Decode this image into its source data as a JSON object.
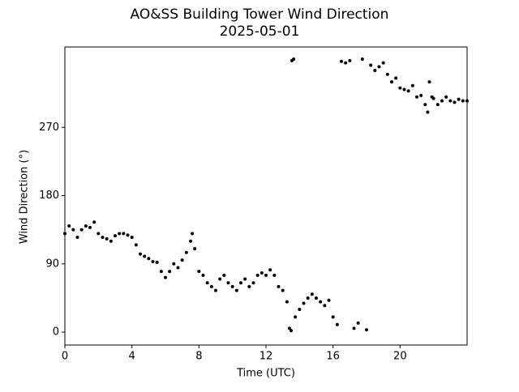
{
  "chart_data": {
    "type": "scatter",
    "title": "AO&SS Building Tower Wind Direction",
    "subtitle": "2025-05-01",
    "x_label": "Time (UTC)",
    "y_label": "Wind Direction (°)",
    "color": "#000000",
    "xlim": [
      0,
      24
    ],
    "xticks": [
      0,
      4,
      8,
      12,
      16,
      20
    ],
    "ylim": [
      -17,
      376
    ],
    "yticks": [
      0,
      90,
      180,
      270
    ],
    "x": [
      0,
      0.25,
      0.5,
      0.75,
      1,
      1.25,
      1.5,
      1.75,
      2,
      2.25,
      2.5,
      2.75,
      3,
      3.25,
      3.5,
      3.75,
      4,
      4.25,
      4.5,
      4.75,
      5,
      5.25,
      5.5,
      5.75,
      6,
      6.25,
      6.5,
      6.75,
      7,
      7.25,
      7.5,
      7.6,
      7.75,
      8,
      8.25,
      8.5,
      8.75,
      9,
      9.25,
      9.5,
      9.75,
      10,
      10.25,
      10.5,
      10.75,
      11,
      11.25,
      11.5,
      11.75,
      12,
      12.25,
      12.5,
      12.75,
      13,
      13.25,
      13.4,
      13.5,
      13.55,
      13.65,
      13.75,
      14,
      14.25,
      14.5,
      14.75,
      15,
      15.25,
      15.5,
      15.75,
      16,
      16.25,
      16.5,
      16.75,
      17,
      17.25,
      17.5,
      17.75,
      18,
      18.25,
      18.5,
      18.75,
      19,
      19.25,
      19.5,
      19.75,
      20,
      20.25,
      20.5,
      20.75,
      21,
      21.25,
      21.5,
      21.65,
      21.75,
      21.9,
      22,
      22.25,
      22.5,
      22.75,
      23,
      23.25,
      23.5,
      23.75,
      24
    ],
    "values": [
      130,
      140,
      135,
      125,
      135,
      140,
      138,
      145,
      130,
      125,
      123,
      120,
      127,
      130,
      130,
      128,
      125,
      115,
      103,
      100,
      97,
      93,
      92,
      80,
      72,
      80,
      90,
      85,
      95,
      105,
      120,
      130,
      110,
      80,
      75,
      65,
      60,
      55,
      70,
      75,
      65,
      60,
      55,
      65,
      70,
      60,
      65,
      75,
      78,
      75,
      82,
      75,
      60,
      55,
      40,
      5,
      2,
      358,
      360,
      20,
      30,
      38,
      45,
      50,
      45,
      40,
      35,
      42,
      20,
      10,
      357,
      355,
      358,
      5,
      12,
      360,
      3,
      352,
      345,
      350,
      355,
      340,
      330,
      335,
      322,
      320,
      318,
      325,
      310,
      312,
      300,
      290,
      330,
      310,
      308,
      300,
      305,
      310,
      305,
      303,
      307,
      305,
      305
    ]
  }
}
